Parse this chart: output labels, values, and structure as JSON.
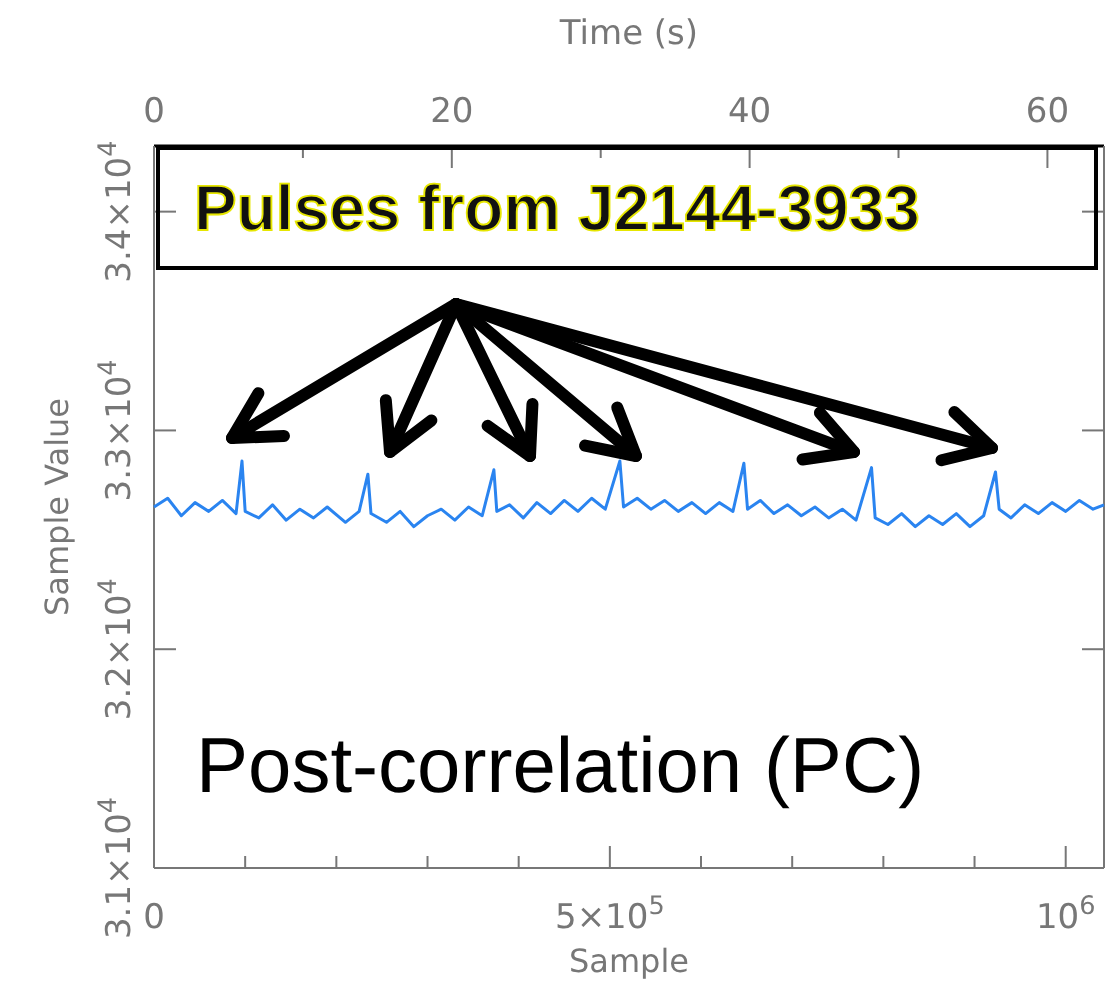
{
  "chart_data": {
    "type": "line",
    "xlabel": "Sample",
    "ylabel": "Sample Value",
    "x2label": "Time (s)",
    "annotations": [
      "Pulses from J2144-3933",
      "Post-correlation (PC)"
    ],
    "x": [
      0,
      15000,
      30000,
      45000,
      60000,
      75000,
      90000,
      96500,
      100000,
      115000,
      130000,
      145000,
      160000,
      175000,
      190000,
      210000,
      225000,
      234600,
      238000,
      255000,
      270000,
      285000,
      300000,
      315000,
      330000,
      345000,
      360000,
      372800,
      376000,
      390000,
      405000,
      420000,
      435000,
      450000,
      465000,
      480000,
      495000,
      511000,
      515000,
      530000,
      545000,
      560000,
      575000,
      590000,
      605000,
      620000,
      635000,
      647000,
      651000,
      665000,
      680000,
      695000,
      710000,
      725000,
      740000,
      755000,
      770000,
      787000,
      791000,
      805000,
      820000,
      835000,
      850000,
      865000,
      880000,
      895000,
      910000,
      923000,
      927000,
      940000,
      955000,
      970000,
      985000,
      1000000,
      1015000,
      1030000,
      1042000
    ],
    "series": [
      {
        "color": "#2a84f0",
        "values": [
          32650,
          32690,
          32610,
          32670,
          32630,
          32680,
          32620,
          32860,
          32630,
          32600,
          32660,
          32590,
          32640,
          32600,
          32650,
          32580,
          32630,
          32800,
          32620,
          32580,
          32630,
          32560,
          32610,
          32640,
          32590,
          32650,
          32610,
          32820,
          32630,
          32660,
          32600,
          32670,
          32620,
          32680,
          32630,
          32690,
          32640,
          32860,
          32650,
          32690,
          32640,
          32680,
          32630,
          32670,
          32620,
          32670,
          32630,
          32850,
          32640,
          32680,
          32620,
          32660,
          32610,
          32650,
          32600,
          32640,
          32590,
          32830,
          32600,
          32570,
          32620,
          32560,
          32610,
          32570,
          32620,
          32560,
          32610,
          32810,
          32640,
          32600,
          32660,
          32620,
          32670,
          32630,
          32680,
          32640,
          32660
        ]
      }
    ],
    "xlim": [
      0,
      1042000
    ],
    "xticks": [
      0,
      {
        "value": 100000,
        "label": null
      },
      {
        "value": 200000,
        "label": null
      },
      {
        "value": 300000,
        "label": null
      },
      {
        "value": 400000,
        "label": null
      },
      {
        "value": 500000,
        "label": "5×10$^{5}$"
      },
      {
        "value": 600000,
        "label": null
      },
      {
        "value": 700000,
        "label": null
      },
      {
        "value": 800000,
        "label": null
      },
      {
        "value": 900000,
        "label": null
      },
      {
        "value": 1000000,
        "label": "10$^{6}$"
      }
    ],
    "x2lim": [
      0,
      63.8
    ],
    "x2ticks": [
      0,
      {
        "value": 10,
        "label": null
      },
      20,
      {
        "value": 30,
        "label": null
      },
      40,
      {
        "value": 50,
        "label": null
      },
      60
    ],
    "ylim": [
      31000,
      34300
    ],
    "yticks": [
      {
        "value": 31000,
        "label": "3.1×10$^{4}$"
      },
      {
        "value": 32000,
        "label": "3.2×10$^{4}$"
      },
      {
        "value": 33000,
        "label": "3.3×10$^{4}$"
      },
      {
        "value": 34000,
        "label": "3.4×10$^{4}$"
      }
    ],
    "grid": false,
    "marker": "none",
    "line_style": "solid"
  }
}
